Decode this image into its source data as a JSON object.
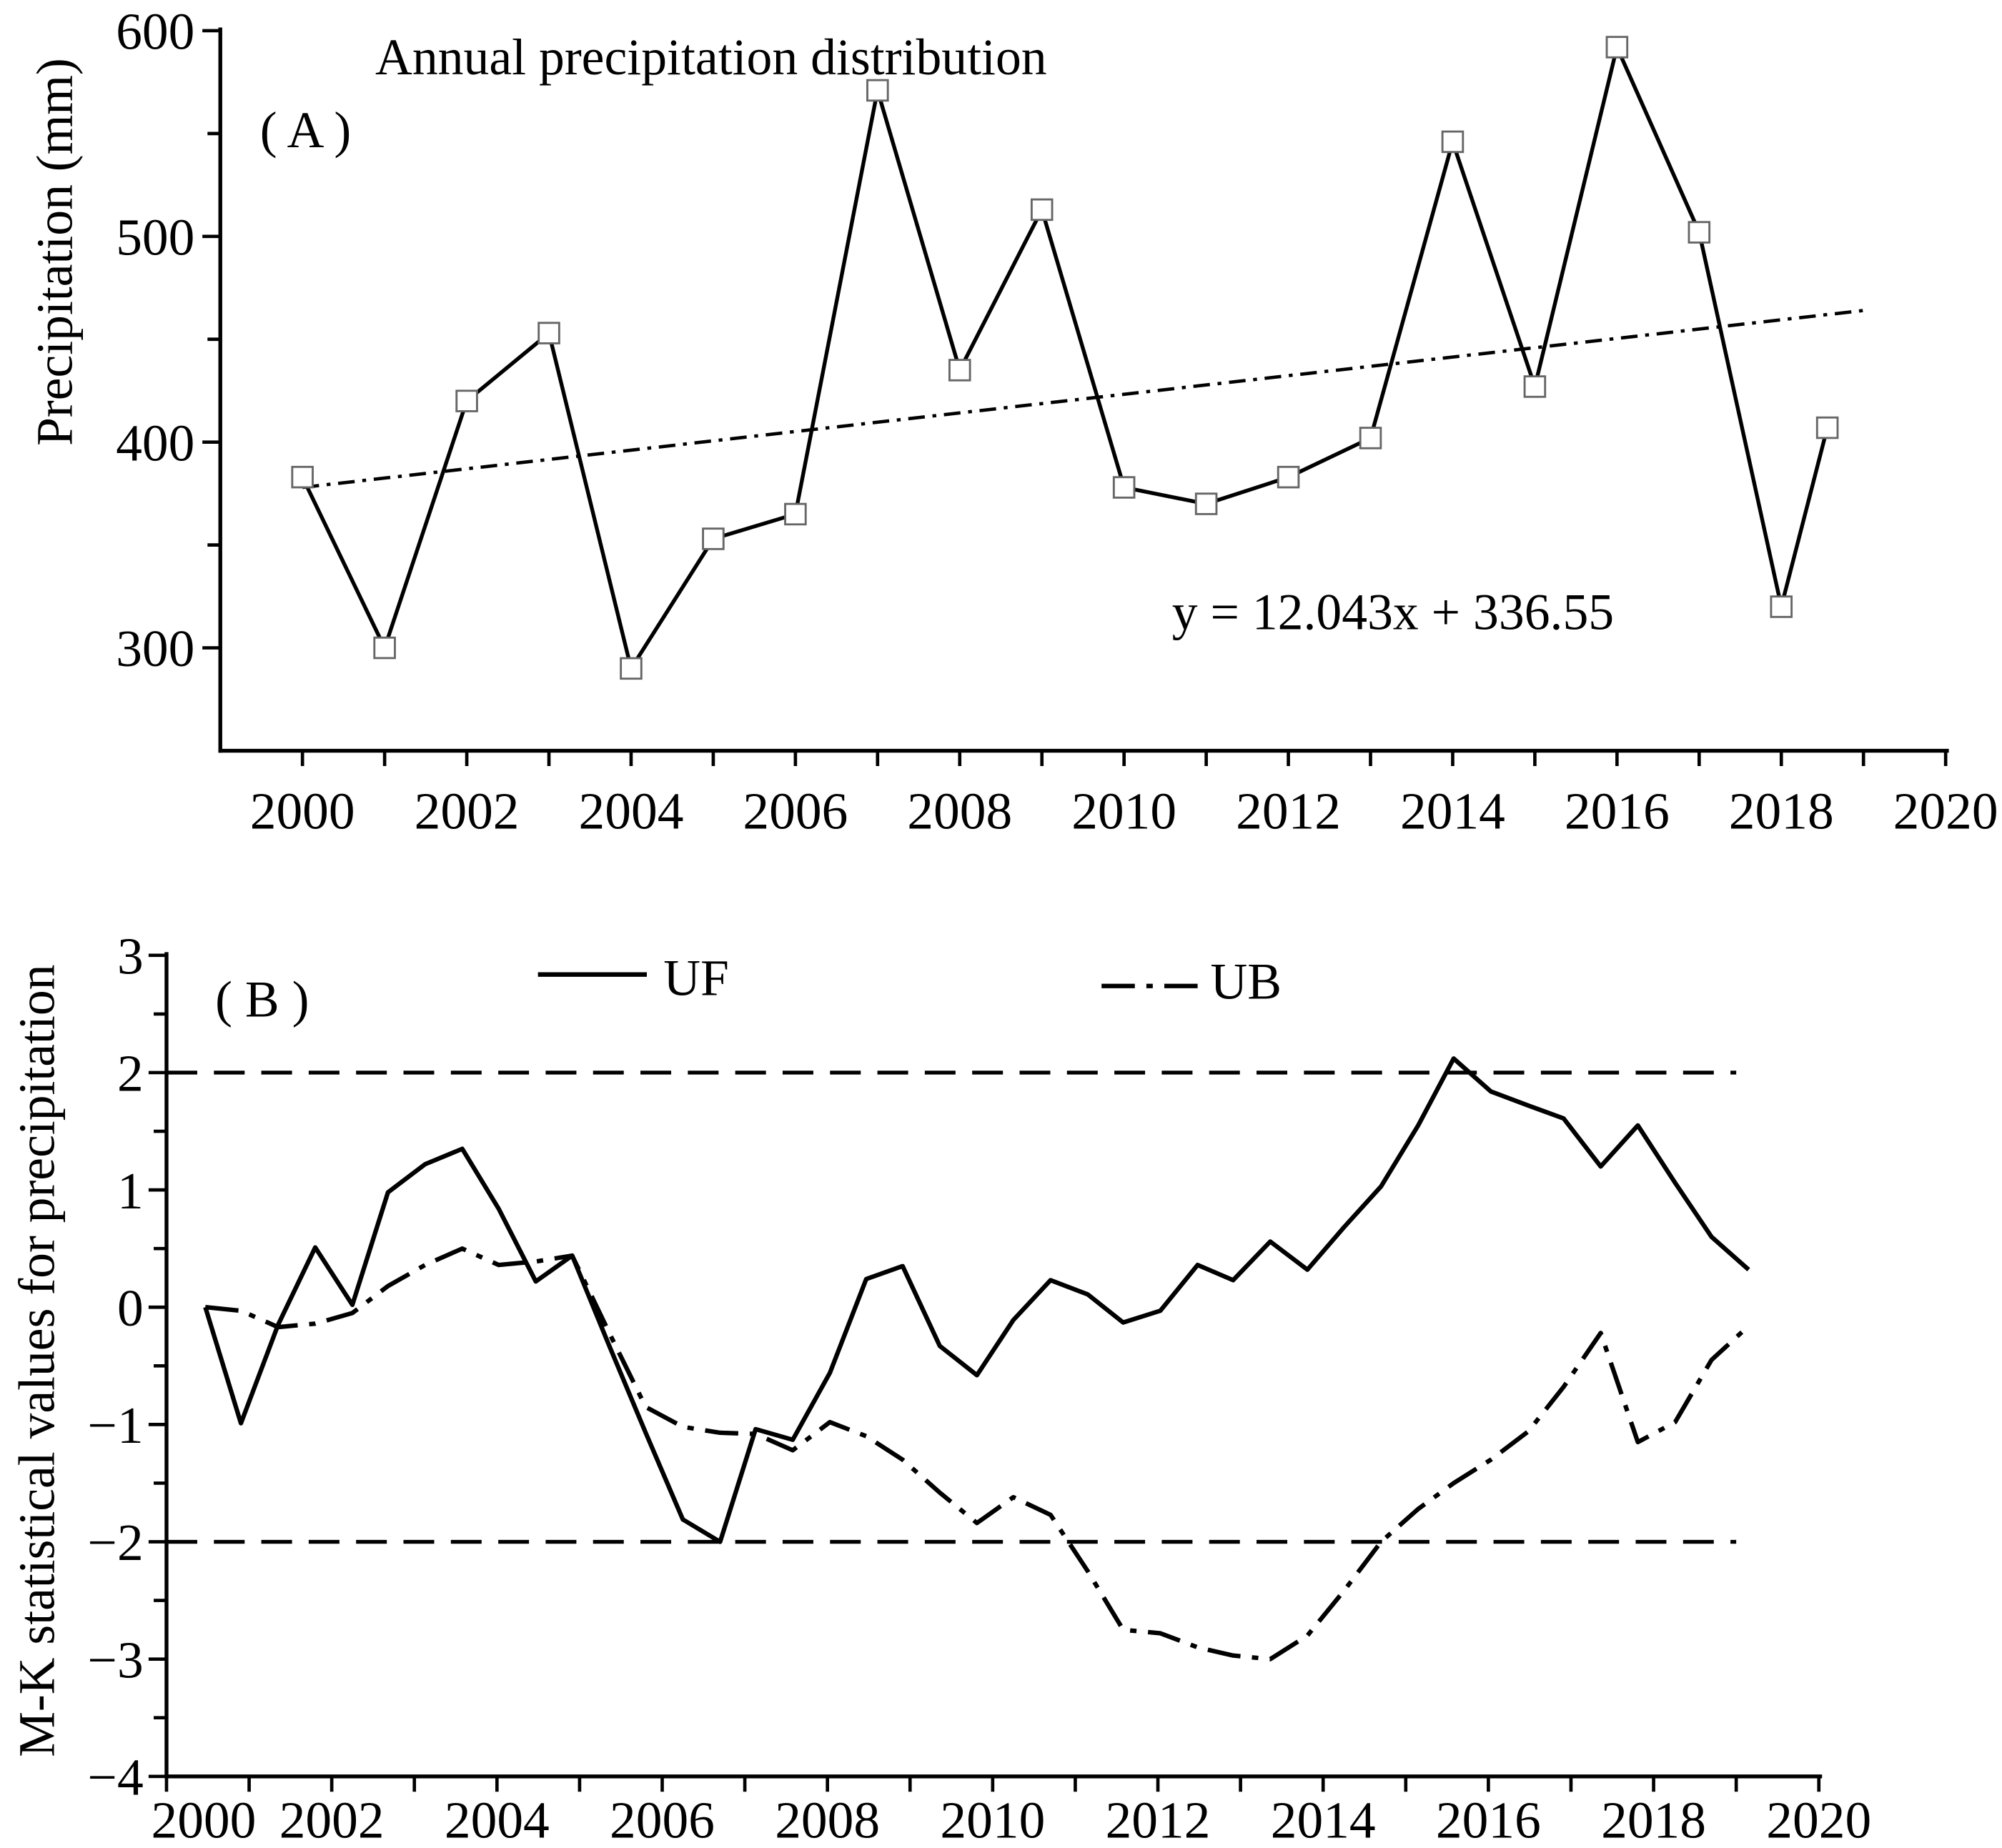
{
  "chart_data": [
    {
      "type": "line",
      "title": "Annual precipitation distribution",
      "panel_label": "( A )",
      "xlabel": "",
      "ylabel": "Precipitation (mm)",
      "xlim": [
        1999,
        2020
      ],
      "ylim": [
        250,
        600
      ],
      "x_ticks": [
        2000,
        2002,
        2004,
        2006,
        2008,
        2010,
        2012,
        2014,
        2016,
        2018,
        2020
      ],
      "y_ticks": [
        300,
        400,
        500,
        600
      ],
      "grid": false,
      "series": [
        {
          "x": [
            2000,
            2001,
            2002,
            2003,
            2004,
            2005,
            2006,
            2007,
            2008,
            2009,
            2010,
            2011,
            2012,
            2013,
            2014,
            2015,
            2016,
            2017,
            2018,
            2018.56
          ],
          "values": [
            383,
            300,
            420,
            453,
            290,
            353,
            365,
            571,
            435,
            513,
            378,
            370,
            383,
            402,
            546,
            427,
            592,
            502,
            320,
            407
          ]
        }
      ],
      "trend": {
        "x": [
          2000,
          2019
        ],
        "values": [
          378,
          464
        ],
        "equation": "y = 12.043x + 336.55"
      },
      "colors": {
        "line": "#000000",
        "marker_fill": "#ffffff",
        "marker_edge": "#666666"
      }
    },
    {
      "type": "line",
      "panel_label": "( B )",
      "xlabel": "",
      "ylabel": "M-K statistical values for precipitation",
      "xlim": [
        2000,
        2020
      ],
      "ylim": [
        -4,
        3
      ],
      "x_ticks": [
        2000,
        2002,
        2004,
        2006,
        2008,
        2010,
        2012,
        2014,
        2016,
        2018,
        2020
      ],
      "y_ticks": [
        -4,
        -3,
        -2,
        -1,
        0,
        1,
        2,
        3
      ],
      "y_tick_labels": [
        "−4",
        "−3",
        "−2",
        "−1",
        "0",
        "1",
        "2",
        "3"
      ],
      "grid": false,
      "reference_lines": [
        {
          "y": 2,
          "x": [
            2000,
            2019
          ]
        },
        {
          "y": -2,
          "x": [
            2000,
            2019
          ]
        }
      ],
      "x": [
        2000.47,
        2000.9,
        2001.35,
        2001.8,
        2002.25,
        2002.68,
        2003.13,
        2003.58,
        2004.02,
        2004.47,
        2004.91,
        2005.36,
        2005.8,
        2006.25,
        2006.7,
        2007.13,
        2007.58,
        2008.03,
        2008.47,
        2008.91,
        2009.36,
        2009.81,
        2010.25,
        2010.7,
        2011.15,
        2011.58,
        2012.03,
        2012.48,
        2012.91,
        2013.36,
        2013.81,
        2014.25,
        2014.7,
        2015.15,
        2015.58,
        2016.03,
        2016.48,
        2016.91,
        2017.36,
        2017.81,
        2018.26,
        2018.7,
        2019.15
      ],
      "series": [
        {
          "name": "UF",
          "values": [
            0,
            -0.99,
            -0.15,
            0.51,
            0.02,
            0.98,
            1.22,
            1.35,
            0.84,
            0.22,
            0.44,
            -0.33,
            -1.07,
            -1.81,
            -2.0,
            -1.04,
            -1.13,
            -0.56,
            0.24,
            0.35,
            -0.33,
            -0.58,
            -0.11,
            0.23,
            0.11,
            -0.13,
            -0.03,
            0.36,
            0.23,
            0.56,
            0.32,
            0.68,
            1.03,
            1.55,
            2.12,
            1.84,
            1.72,
            1.61,
            1.2,
            1.55,
            1.06,
            0.6,
            0.32
          ]
        },
        {
          "name": "UB",
          "values": [
            0,
            -0.03,
            -0.17,
            -0.14,
            -0.05,
            0.18,
            0.36,
            0.5,
            0.36,
            0.39,
            0.44,
            -0.22,
            -0.85,
            -1.02,
            -1.07,
            -1.08,
            -1.22,
            -0.98,
            -1.1,
            -1.3,
            -1.58,
            -1.84,
            -1.62,
            -1.77,
            -2.25,
            -2.75,
            -2.78,
            -2.9,
            -2.97,
            -3.0,
            -2.8,
            -2.42,
            -2.0,
            -1.72,
            -1.5,
            -1.3,
            -1.06,
            -0.68,
            -0.22,
            -1.15,
            -0.98,
            -0.45,
            -0.16
          ]
        }
      ],
      "colors": {
        "line": "#000000"
      }
    }
  ]
}
